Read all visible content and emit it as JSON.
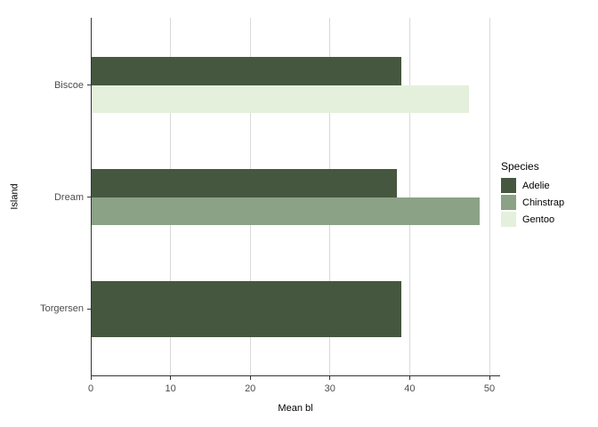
{
  "chart_data": {
    "type": "bar",
    "orientation": "horizontal",
    "title": "",
    "xlabel": "Mean bl",
    "ylabel": "Island",
    "categories": [
      "Biscoe",
      "Dream",
      "Torgersen"
    ],
    "series": [
      {
        "name": "Adelie",
        "color": "#46573F",
        "values": [
          39.0,
          38.5,
          39.0
        ]
      },
      {
        "name": "Chinstrap",
        "color": "#8BA287",
        "values": [
          null,
          48.8,
          null
        ]
      },
      {
        "name": "Gentoo",
        "color": "#E4F0DC",
        "values": [
          47.5,
          null,
          null
        ]
      }
    ],
    "xlim": [
      0,
      50
    ],
    "xticks": [
      0,
      10,
      20,
      30,
      40,
      50
    ],
    "grid": "vertical-major",
    "legend": {
      "title": "Species",
      "position": "right",
      "entries": [
        "Adelie",
        "Chinstrap",
        "Gentoo"
      ]
    },
    "theme": {
      "background": "#ffffff",
      "grid_color": "#d9d9d9",
      "axis_line_color": "#333333",
      "tick_label_color": "#4d4d4d",
      "text_color": "#000000"
    }
  }
}
